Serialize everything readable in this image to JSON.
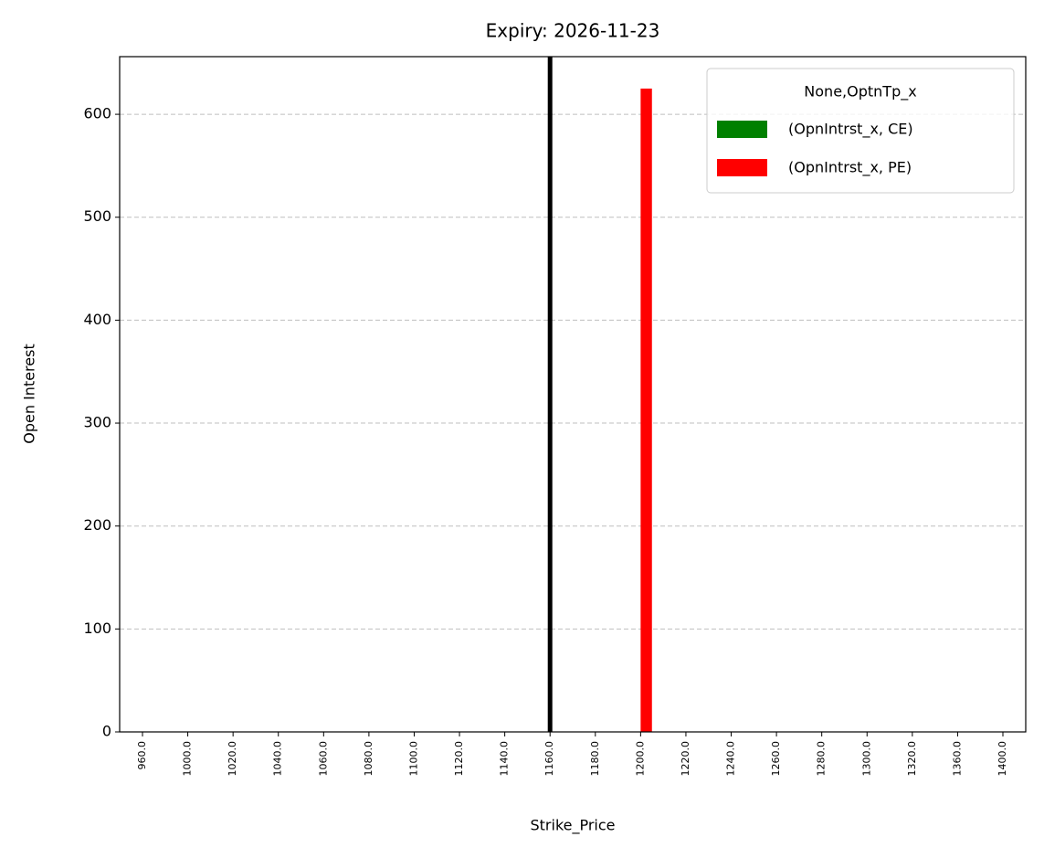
{
  "chart_data": {
    "type": "bar",
    "title": "Expiry: 2026-11-23",
    "xlabel": "Strike_Price",
    "ylabel": "Open Interest",
    "categories": [
      "960.0",
      "1000.0",
      "1020.0",
      "1040.0",
      "1060.0",
      "1080.0",
      "1100.0",
      "1120.0",
      "1140.0",
      "1160.0",
      "1180.0",
      "1200.0",
      "1220.0",
      "1240.0",
      "1260.0",
      "1280.0",
      "1300.0",
      "1320.0",
      "1360.0",
      "1400.0"
    ],
    "series": [
      {
        "name": "(OpnIntrst_x, CE)",
        "color": "#008000",
        "values": [
          0,
          0,
          0,
          0,
          0,
          0,
          0,
          0,
          0,
          0,
          0,
          0,
          0,
          0,
          0,
          0,
          0,
          0,
          0,
          0
        ]
      },
      {
        "name": "(OpnIntrst_x, PE)",
        "color": "#ff0000",
        "values": [
          0,
          0,
          0,
          0,
          0,
          0,
          0,
          0,
          0,
          0,
          0,
          625,
          0,
          0,
          0,
          0,
          0,
          0,
          0,
          0
        ]
      }
    ],
    "legend_title": "None,OptnTp_x",
    "legend_position": "upper-right",
    "reference_line": {
      "x": "1160.0",
      "color": "#000000"
    },
    "ylim": [
      0,
      656
    ],
    "yticks": [
      0,
      100,
      200,
      300,
      400,
      500,
      600
    ],
    "grid": true
  }
}
